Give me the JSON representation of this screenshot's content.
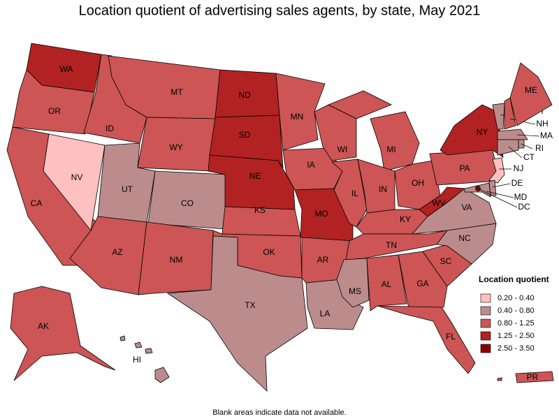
{
  "title": "Location quotient of advertising sales agents, by state, May 2021",
  "legend": {
    "title": "Location quotient",
    "bins": [
      {
        "label": "0.20 - 0.40",
        "color": "#ffc0c0"
      },
      {
        "label": "0.40 - 0.80",
        "color": "#bc8c8c"
      },
      {
        "label": "0.80 - 1.25",
        "color": "#cd5555"
      },
      {
        "label": "1.25 - 2.50",
        "color": "#b22222"
      },
      {
        "label": "2.50 - 3.50",
        "color": "#8b0000"
      }
    ]
  },
  "states": [
    {
      "abbr": "WA",
      "color": "#b22222"
    },
    {
      "abbr": "OR",
      "color": "#cd5555"
    },
    {
      "abbr": "CA",
      "color": "#cd5555"
    },
    {
      "abbr": "NV",
      "color": "#ffc0c0"
    },
    {
      "abbr": "ID",
      "color": "#cd5555"
    },
    {
      "abbr": "MT",
      "color": "#cd5555"
    },
    {
      "abbr": "WY",
      "color": "#cd5555"
    },
    {
      "abbr": "UT",
      "color": "#bc8c8c"
    },
    {
      "abbr": "CO",
      "color": "#bc8c8c"
    },
    {
      "abbr": "AZ",
      "color": "#cd5555"
    },
    {
      "abbr": "NM",
      "color": "#cd5555"
    },
    {
      "abbr": "ND",
      "color": "#b22222"
    },
    {
      "abbr": "SD",
      "color": "#b22222"
    },
    {
      "abbr": "NE",
      "color": "#b22222"
    },
    {
      "abbr": "KS",
      "color": "#cd5555"
    },
    {
      "abbr": "OK",
      "color": "#cd5555"
    },
    {
      "abbr": "TX",
      "color": "#bc8c8c"
    },
    {
      "abbr": "MN",
      "color": "#cd5555"
    },
    {
      "abbr": "IA",
      "color": "#cd5555"
    },
    {
      "abbr": "MO",
      "color": "#b22222"
    },
    {
      "abbr": "AR",
      "color": "#cd5555"
    },
    {
      "abbr": "LA",
      "color": "#bc8c8c"
    },
    {
      "abbr": "WI",
      "color": "#cd5555"
    },
    {
      "abbr": "IL",
      "color": "#cd5555"
    },
    {
      "abbr": "MI",
      "color": "#cd5555"
    },
    {
      "abbr": "IN",
      "color": "#cd5555"
    },
    {
      "abbr": "OH",
      "color": "#cd5555"
    },
    {
      "abbr": "KY",
      "color": "#cd5555"
    },
    {
      "abbr": "TN",
      "color": "#cd5555"
    },
    {
      "abbr": "MS",
      "color": "#bc8c8c"
    },
    {
      "abbr": "AL",
      "color": "#cd5555"
    },
    {
      "abbr": "GA",
      "color": "#cd5555"
    },
    {
      "abbr": "FL",
      "color": "#cd5555"
    },
    {
      "abbr": "SC",
      "color": "#cd5555"
    },
    {
      "abbr": "NC",
      "color": "#bc8c8c"
    },
    {
      "abbr": "VA",
      "color": "#bc8c8c"
    },
    {
      "abbr": "WV",
      "color": "#b22222"
    },
    {
      "abbr": "PA",
      "color": "#cd5555"
    },
    {
      "abbr": "NY",
      "color": "#b22222"
    },
    {
      "abbr": "VT",
      "color": "#bc8c8c"
    },
    {
      "abbr": "NH",
      "color": "#cd5555"
    },
    {
      "abbr": "ME",
      "color": "#cd5555"
    },
    {
      "abbr": "MA",
      "color": "#bc8c8c"
    },
    {
      "abbr": "RI",
      "color": "#bc8c8c"
    },
    {
      "abbr": "CT",
      "color": "#bc8c8c"
    },
    {
      "abbr": "NJ",
      "color": "#ffc0c0"
    },
    {
      "abbr": "DE",
      "color": "#bc8c8c"
    },
    {
      "abbr": "MD",
      "color": "#bc8c8c"
    },
    {
      "abbr": "DC",
      "color": "#8b0000"
    },
    {
      "abbr": "AK",
      "color": "#cd5555"
    },
    {
      "abbr": "HI",
      "color": "#bc8c8c"
    },
    {
      "abbr": "PR",
      "color": "#cd5555"
    }
  ],
  "footnote": "Blank areas indicate data not available."
}
